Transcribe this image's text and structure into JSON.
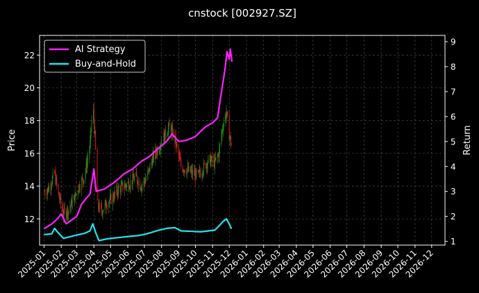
{
  "chart_data": {
    "type": "line",
    "title": "cnstock [002927.SZ]",
    "ylabel_left": "Price",
    "ylabel_right": "Return",
    "ylim_left": [
      10.4,
      23.2
    ],
    "ylim_right": [
      0.85,
      9.25
    ],
    "xlim": [
      "2024-12-24",
      "2026-12-25"
    ],
    "yticks_left": [
      12,
      14,
      16,
      18,
      20,
      22
    ],
    "yticks_right": [
      1,
      2,
      3,
      4,
      5,
      6,
      7,
      8,
      9
    ],
    "xticks": [
      "2025-01",
      "2025-02",
      "2025-03",
      "2025-04",
      "2025-05",
      "2025-06",
      "2025-07",
      "2025-08",
      "2025-09",
      "2025-10",
      "2025-11",
      "2025-12",
      "2026-01",
      "2026-02",
      "2026-03",
      "2026-04",
      "2026-05",
      "2026-06",
      "2026-07",
      "2026-08",
      "2026-09",
      "2026-10",
      "2026-11",
      "2026-12"
    ],
    "grid": true,
    "legend_position": "top-left",
    "colors": {
      "up": "#1a8c1a",
      "down": "#d42020",
      "ai": "#ff22ff",
      "bh": "#22e6f0",
      "grid": "#555555"
    },
    "price_path": [
      [
        "2025-01-02",
        13.6
      ],
      [
        "2025-01-10",
        13.9
      ],
      [
        "2025-01-20",
        14.8
      ],
      [
        "2025-01-27",
        13.5
      ],
      [
        "2025-02-05",
        12.3
      ],
      [
        "2025-02-15",
        12.6
      ],
      [
        "2025-02-25",
        13.3
      ],
      [
        "2025-03-05",
        14.0
      ],
      [
        "2025-03-15",
        14.6
      ],
      [
        "2025-03-25",
        16.5
      ],
      [
        "2025-03-30",
        19.0
      ],
      [
        "2025-04-03",
        17.0
      ],
      [
        "2025-04-08",
        12.8
      ],
      [
        "2025-04-15",
        12.5
      ],
      [
        "2025-04-25",
        13.0
      ],
      [
        "2025-05-05",
        13.3
      ],
      [
        "2025-05-15",
        13.8
      ],
      [
        "2025-05-25",
        14.0
      ],
      [
        "2025-06-05",
        14.2
      ],
      [
        "2025-06-15",
        14.6
      ],
      [
        "2025-06-25",
        14.0
      ],
      [
        "2025-07-05",
        14.5
      ],
      [
        "2025-07-15",
        15.6
      ],
      [
        "2025-07-25",
        16.3
      ],
      [
        "2025-08-05",
        17.0
      ],
      [
        "2025-08-15",
        17.6
      ],
      [
        "2025-08-25",
        16.9
      ],
      [
        "2025-09-05",
        15.2
      ],
      [
        "2025-09-15",
        15.0
      ],
      [
        "2025-09-25",
        14.8
      ],
      [
        "2025-10-05",
        14.6
      ],
      [
        "2025-10-15",
        15.1
      ],
      [
        "2025-10-25",
        15.6
      ],
      [
        "2025-11-05",
        15.4
      ],
      [
        "2025-11-12",
        16.0
      ],
      [
        "2025-11-20",
        17.8
      ],
      [
        "2025-11-26",
        18.5
      ],
      [
        "2025-12-01",
        17.2
      ],
      [
        "2025-12-05",
        16.5
      ]
    ],
    "series": [
      {
        "name": "AI Strategy",
        "points": [
          [
            "2025-01-01",
            1.5
          ],
          [
            "2025-01-15",
            1.7
          ],
          [
            "2025-01-25",
            1.9
          ],
          [
            "2025-02-01",
            2.1
          ],
          [
            "2025-02-10",
            1.7
          ],
          [
            "2025-03-01",
            2.0
          ],
          [
            "2025-03-10",
            2.5
          ],
          [
            "2025-03-25",
            2.9
          ],
          [
            "2025-04-01",
            3.9
          ],
          [
            "2025-04-05",
            3.0
          ],
          [
            "2025-04-20",
            3.1
          ],
          [
            "2025-05-10",
            3.4
          ],
          [
            "2025-05-25",
            3.7
          ],
          [
            "2025-06-10",
            3.9
          ],
          [
            "2025-06-25",
            4.2
          ],
          [
            "2025-07-10",
            4.4
          ],
          [
            "2025-07-25",
            4.7
          ],
          [
            "2025-08-10",
            5.0
          ],
          [
            "2025-08-20",
            5.3
          ],
          [
            "2025-09-01",
            5.0
          ],
          [
            "2025-09-15",
            5.05
          ],
          [
            "2025-10-01",
            5.2
          ],
          [
            "2025-10-10",
            5.4
          ],
          [
            "2025-10-20",
            5.6
          ],
          [
            "2025-11-01",
            5.75
          ],
          [
            "2025-11-10",
            5.95
          ],
          [
            "2025-11-15",
            6.7
          ],
          [
            "2025-11-20",
            7.4
          ],
          [
            "2025-11-24",
            8.0
          ],
          [
            "2025-11-27",
            8.6
          ],
          [
            "2025-12-01",
            8.3
          ],
          [
            "2025-12-03",
            8.7
          ],
          [
            "2025-12-06",
            8.2
          ]
        ]
      },
      {
        "name": "Buy-and-Hold",
        "points": [
          [
            "2025-01-01",
            1.27
          ],
          [
            "2025-01-15",
            1.3
          ],
          [
            "2025-01-20",
            1.52
          ],
          [
            "2025-01-25",
            1.38
          ],
          [
            "2025-02-05",
            1.12
          ],
          [
            "2025-02-25",
            1.23
          ],
          [
            "2025-03-15",
            1.32
          ],
          [
            "2025-03-25",
            1.42
          ],
          [
            "2025-03-30",
            1.7
          ],
          [
            "2025-04-05",
            1.3
          ],
          [
            "2025-04-10",
            1.03
          ],
          [
            "2025-04-25",
            1.1
          ],
          [
            "2025-05-15",
            1.15
          ],
          [
            "2025-06-05",
            1.2
          ],
          [
            "2025-06-20",
            1.23
          ],
          [
            "2025-07-05",
            1.3
          ],
          [
            "2025-07-25",
            1.43
          ],
          [
            "2025-08-10",
            1.52
          ],
          [
            "2025-08-25",
            1.55
          ],
          [
            "2025-09-05",
            1.42
          ],
          [
            "2025-09-25",
            1.4
          ],
          [
            "2025-10-10",
            1.38
          ],
          [
            "2025-10-25",
            1.42
          ],
          [
            "2025-11-05",
            1.45
          ],
          [
            "2025-11-12",
            1.6
          ],
          [
            "2025-11-20",
            1.8
          ],
          [
            "2025-11-26",
            1.9
          ],
          [
            "2025-12-01",
            1.7
          ],
          [
            "2025-12-05",
            1.5
          ]
        ]
      }
    ]
  }
}
